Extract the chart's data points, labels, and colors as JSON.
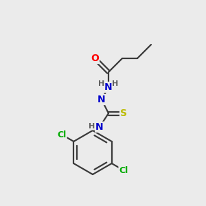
{
  "background_color": "#ebebeb",
  "bond_color": "#3a3a3a",
  "atom_colors": {
    "O": "#ff0000",
    "N": "#0000cc",
    "S": "#bbbb00",
    "Cl": "#00aa00",
    "H": "#606060",
    "C": "#3a3a3a"
  },
  "figsize": [
    3.0,
    3.0
  ],
  "dpi": 100
}
